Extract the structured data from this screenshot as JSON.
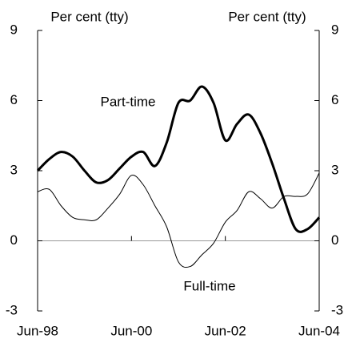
{
  "chart_data": {
    "type": "line",
    "y_label": "Per cent (tty)",
    "y2_label": "Per cent (tty)",
    "categories": [
      "Jun-98",
      null,
      null,
      null,
      null,
      null,
      null,
      null,
      "Jun-00",
      null,
      null,
      null,
      null,
      null,
      null,
      null,
      "Jun-02",
      null,
      null,
      null,
      null,
      null,
      null,
      null,
      "Jun-04"
    ],
    "series": [
      {
        "name": "Part-time",
        "color": "#000000",
        "width": 3,
        "values": [
          3.0,
          3.5,
          3.8,
          3.6,
          3.0,
          2.5,
          2.6,
          3.1,
          3.6,
          3.8,
          3.2,
          4.2,
          5.9,
          6.0,
          6.6,
          5.9,
          4.3,
          5.0,
          5.4,
          4.6,
          3.3,
          1.8,
          0.5,
          0.5,
          1.0
        ]
      },
      {
        "name": "Full-time",
        "color": "#000000",
        "width": 1,
        "values": [
          2.1,
          2.2,
          1.5,
          1.0,
          0.9,
          0.9,
          1.4,
          2.0,
          2.8,
          2.4,
          1.5,
          0.6,
          -0.9,
          -1.1,
          -0.6,
          -0.1,
          0.8,
          1.3,
          2.1,
          1.8,
          1.4,
          1.9,
          1.9,
          2.0,
          2.9
        ]
      }
    ],
    "ylim": [
      -3,
      9
    ],
    "yticks": [
      -3,
      0,
      3,
      6,
      9
    ],
    "y2lim": [
      -3,
      9
    ],
    "y2ticks": [
      -3,
      0,
      3,
      6,
      9
    ]
  }
}
